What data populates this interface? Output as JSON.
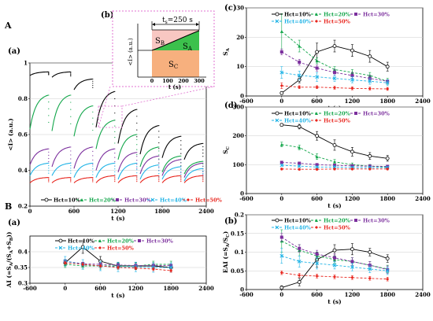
{
  "figure_labels": {
    "A": "A",
    "B": "B",
    "a_top": "(a)",
    "b_inset": "(b)",
    "c": "(c)",
    "d": "(d)",
    "a_bottom": "(a)",
    "b_bottom": "(b)"
  },
  "colors": {
    "hct10": "#000000",
    "hct20": "#12a64a",
    "hct30": "#7b2f9d",
    "hct40": "#1fb3e6",
    "hct50": "#e8241c",
    "inset_border": "#e070d0",
    "region_b": "#f8c7c2",
    "region_a": "#3cc14c",
    "region_c": "#f7b07e"
  },
  "legend_series": [
    "Hct=10%",
    "Hct=20%",
    "Hct=30%",
    "Hct=40%",
    "Hct=50%"
  ],
  "inset": {
    "xlabel": "t (s)",
    "ylabel": "<I> (a.u.)",
    "xticks": [
      "0",
      "100",
      "200",
      "300"
    ],
    "annotation": "t",
    "annotation_sub": "s",
    "annotation_value": "=250 s",
    "region_b_label": "S",
    "region_b_sub": "B",
    "region_a_label": "S",
    "region_a_sub": "A",
    "region_c_label": "S",
    "region_c_sub": "C"
  },
  "chart_data": [
    {
      "id": "A_a",
      "type": "line",
      "xlabel": "t (s)",
      "ylabel": "<I> (a.u.)",
      "xlim": [
        0,
        2400
      ],
      "ylim": [
        0.2,
        1.0
      ],
      "xticks": [
        0,
        600,
        1200,
        1800,
        2400
      ],
      "yticks": [
        0.2,
        0.4,
        0.6,
        0.8,
        1.0
      ],
      "ytick_labels": [
        "0.2",
        "0.4",
        "0.6",
        "0.8",
        "1"
      ],
      "cycle_starts": [
        0,
        300,
        600,
        900,
        1200,
        1500,
        1800,
        2100
      ],
      "cycle_length": 250,
      "series": [
        {
          "name": "Hct=10%",
          "start": [
            0.93,
            0.92,
            0.85,
            0.64,
            0.55,
            0.49,
            0.47,
            0.46
          ],
          "end": [
            0.95,
            0.95,
            0.91,
            0.84,
            0.74,
            0.65,
            0.59,
            0.55
          ]
        },
        {
          "name": "Hct=20%",
          "start": [
            0.63,
            0.62,
            0.59,
            0.52,
            0.46,
            0.42,
            0.39,
            0.38
          ],
          "end": [
            0.82,
            0.82,
            0.76,
            0.68,
            0.6,
            0.53,
            0.48,
            0.45
          ]
        },
        {
          "name": "Hct=30%",
          "start": [
            0.43,
            0.42,
            0.41,
            0.4,
            0.39,
            0.38,
            0.37,
            0.36
          ],
          "end": [
            0.52,
            0.53,
            0.53,
            0.52,
            0.5,
            0.48,
            0.46,
            0.44
          ]
        },
        {
          "name": "Hct=40%",
          "start": [
            0.37,
            0.37,
            0.36,
            0.36,
            0.35,
            0.35,
            0.35,
            0.34
          ],
          "end": [
            0.44,
            0.44,
            0.44,
            0.44,
            0.44,
            0.43,
            0.42,
            0.41
          ]
        },
        {
          "name": "Hct=50%",
          "start": [
            0.33,
            0.33,
            0.33,
            0.33,
            0.33,
            0.33,
            0.33,
            0.33
          ],
          "end": [
            0.36,
            0.36,
            0.36,
            0.37,
            0.37,
            0.37,
            0.37,
            0.37
          ]
        }
      ]
    },
    {
      "id": "B_a",
      "type": "line",
      "xlabel": "t (s)",
      "ylabel": "AI (=S",
      "ylabel_parts": [
        "AI (=S",
        "A",
        "/(S",
        "A",
        "+S",
        "B",
        "))"
      ],
      "xlim": [
        -600,
        2400
      ],
      "ylim": [
        0.3,
        0.45
      ],
      "xticks": [
        -600,
        0,
        600,
        1200,
        1800,
        2400
      ],
      "yticks": [
        0.3,
        0.35,
        0.4
      ],
      "ytick_labels": [
        "0.3",
        "0.35",
        "0.4"
      ],
      "x": [
        0,
        300,
        600,
        900,
        1200,
        1500,
        1800
      ],
      "series": [
        {
          "name": "Hct=10%",
          "values": [
            0.365,
            0.415,
            0.37,
            0.355,
            0.355,
            0.355,
            0.35
          ],
          "errors": [
            0.01,
            0.02,
            0.015,
            0.01,
            0.01,
            0.01,
            0.01
          ]
        },
        {
          "name": "Hct=20%",
          "values": [
            0.36,
            0.355,
            0.355,
            0.355,
            0.355,
            0.36,
            0.36
          ],
          "errors": [
            0.01,
            0.01,
            0.01,
            0.01,
            0.01,
            0.01,
            0.01
          ]
        },
        {
          "name": "Hct=30%",
          "values": [
            0.37,
            0.362,
            0.36,
            0.358,
            0.356,
            0.356,
            0.356
          ],
          "errors": [
            0.005,
            0.005,
            0.005,
            0.005,
            0.005,
            0.005,
            0.005
          ]
        },
        {
          "name": "Hct=40%",
          "values": [
            0.37,
            0.36,
            0.355,
            0.352,
            0.352,
            0.35,
            0.35
          ],
          "errors": [
            0.015,
            0.015,
            0.015,
            0.015,
            0.015,
            0.015,
            0.015
          ]
        },
        {
          "name": "Hct=50%",
          "values": [
            0.365,
            0.36,
            0.355,
            0.35,
            0.348,
            0.345,
            0.34
          ],
          "errors": [
            0.005,
            0.005,
            0.005,
            0.005,
            0.005,
            0.005,
            0.005
          ]
        }
      ]
    },
    {
      "id": "c",
      "type": "line",
      "xlabel": "t (s)",
      "ylabel": "S",
      "ylabel_sub": "A",
      "xlim": [
        -600,
        2400
      ],
      "ylim": [
        0,
        30
      ],
      "xticks": [
        -600,
        0,
        600,
        1200,
        1800,
        2400
      ],
      "yticks": [
        0,
        10,
        20,
        30
      ],
      "ytick_labels": [
        "0",
        "10",
        "20",
        "30"
      ],
      "x": [
        0,
        300,
        600,
        900,
        1200,
        1500,
        1800
      ],
      "series": [
        {
          "name": "Hct=10%",
          "values": [
            1.0,
            5.5,
            15.0,
            17.0,
            15.5,
            13.5,
            10.0
          ],
          "errors": [
            0.5,
            1,
            3,
            2,
            2,
            2,
            1.5
          ]
        },
        {
          "name": "Hct=20%",
          "values": [
            22.0,
            17.0,
            12.0,
            9.0,
            8.0,
            7.0,
            5.0
          ],
          "errors": [
            6,
            2,
            1,
            1,
            1,
            1,
            1
          ]
        },
        {
          "name": "Hct=30%",
          "values": [
            15.0,
            11.5,
            9.5,
            8.0,
            7.0,
            6.0,
            5.0
          ],
          "errors": [
            1,
            1,
            1,
            1,
            1,
            1,
            0.5
          ]
        },
        {
          "name": "Hct=40%",
          "values": [
            8.0,
            7.0,
            6.5,
            6.0,
            5.5,
            5.0,
            4.5
          ],
          "errors": [
            2,
            1.5,
            1.5,
            1,
            1,
            1,
            1
          ]
        },
        {
          "name": "Hct=50%",
          "values": [
            3.5,
            3.0,
            3.0,
            2.8,
            2.6,
            2.5,
            2.4
          ],
          "errors": [
            1,
            0.5,
            0.5,
            0.5,
            0.5,
            0.5,
            0.5
          ]
        }
      ]
    },
    {
      "id": "d",
      "type": "line",
      "xlabel": "t (s)",
      "ylabel": "S",
      "ylabel_sub": "C",
      "xlim": [
        -600,
        2400
      ],
      "ylim": [
        0,
        300
      ],
      "xticks": [
        -600,
        0,
        600,
        1200,
        1800,
        2400
      ],
      "yticks": [
        0,
        100,
        200,
        300
      ],
      "ytick_labels": [
        "0",
        "100",
        "200",
        "300"
      ],
      "x": [
        0,
        300,
        600,
        900,
        1200,
        1500,
        1800
      ],
      "series": [
        {
          "name": "Hct=10%",
          "values": [
            238,
            232,
            200,
            168,
            145,
            130,
            122
          ],
          "errors": [
            5,
            8,
            15,
            18,
            15,
            12,
            10
          ]
        },
        {
          "name": "Hct=20%",
          "values": [
            170,
            160,
            128,
            110,
            100,
            95,
            92
          ],
          "errors": [
            8,
            8,
            10,
            8,
            6,
            6,
            5
          ]
        },
        {
          "name": "Hct=30%",
          "values": [
            108,
            105,
            100,
            98,
            96,
            95,
            94
          ],
          "errors": [
            3,
            3,
            3,
            3,
            3,
            3,
            3
          ]
        },
        {
          "name": "Hct=40%",
          "values": [
            98,
            95,
            92,
            92,
            90,
            90,
            90
          ],
          "errors": [
            3,
            3,
            3,
            3,
            3,
            3,
            3
          ]
        },
        {
          "name": "Hct=50%",
          "values": [
            85,
            84,
            84,
            85,
            85,
            85,
            85
          ],
          "errors": [
            3,
            3,
            3,
            3,
            3,
            3,
            3
          ]
        }
      ]
    },
    {
      "id": "B_b",
      "type": "line",
      "xlabel": "t (s)",
      "ylabel": "EAI (=S",
      "ylabel_parts": [
        "EAI (=S",
        "A",
        "/S",
        "C",
        ")"
      ],
      "xlim": [
        -600,
        2400
      ],
      "ylim": [
        0,
        0.2
      ],
      "xticks": [
        -600,
        0,
        600,
        1200,
        1800,
        2400
      ],
      "yticks": [
        0,
        0.05,
        0.1,
        0.15,
        0.2
      ],
      "ytick_labels": [
        "0",
        "0.05",
        "0.1",
        "0.15",
        "0.2"
      ],
      "x": [
        0,
        300,
        600,
        900,
        1200,
        1500,
        1800
      ],
      "series": [
        {
          "name": "Hct=10%",
          "values": [
            0.005,
            0.02,
            0.08,
            0.105,
            0.108,
            0.1,
            0.083
          ],
          "errors": [
            0.005,
            0.01,
            0.02,
            0.015,
            0.015,
            0.01,
            0.01
          ]
        },
        {
          "name": "Hct=20%",
          "values": [
            0.13,
            0.105,
            0.09,
            0.08,
            0.075,
            0.065,
            0.055
          ],
          "errors": [
            0.03,
            0.015,
            0.01,
            0.01,
            0.01,
            0.01,
            0.01
          ]
        },
        {
          "name": "Hct=30%",
          "values": [
            0.14,
            0.11,
            0.095,
            0.085,
            0.075,
            0.065,
            0.053
          ],
          "errors": [
            0.01,
            0.01,
            0.01,
            0.01,
            0.01,
            0.01,
            0.01
          ]
        },
        {
          "name": "Hct=40%",
          "values": [
            0.09,
            0.075,
            0.07,
            0.065,
            0.06,
            0.055,
            0.05
          ],
          "errors": [
            0.02,
            0.015,
            0.015,
            0.01,
            0.01,
            0.01,
            0.01
          ]
        },
        {
          "name": "Hct=50%",
          "values": [
            0.045,
            0.038,
            0.036,
            0.034,
            0.032,
            0.03,
            0.028
          ],
          "errors": [
            0.005,
            0.005,
            0.005,
            0.005,
            0.005,
            0.005,
            0.005
          ]
        }
      ]
    }
  ]
}
